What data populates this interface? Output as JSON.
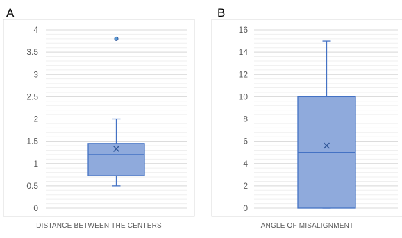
{
  "colors": {
    "box_fill": "#8faadc",
    "box_stroke": "#4472c4",
    "mean_marker": "#2f5597",
    "outlier_fill": "#5b9bd5",
    "outlier_stroke": "#2f5597"
  },
  "chart_data": [
    {
      "type": "box",
      "panel_label": "A",
      "xlabel": "DISTANCE BETWEEN THE CENTERS",
      "ylim": [
        0,
        4
      ],
      "yticks": [
        0,
        0.5,
        1,
        1.5,
        2,
        2.5,
        3,
        3.5,
        4
      ],
      "ytick_labels": [
        "0",
        "0.5",
        "1",
        "1.5",
        "2",
        "2.5",
        "3",
        "3.5",
        "4"
      ],
      "minor_step": 0.1,
      "box": {
        "min": 0.5,
        "q1": 0.73,
        "median": 1.2,
        "q3": 1.45,
        "max": 2.0,
        "mean": 1.33
      },
      "outliers": [
        3.8
      ],
      "grid": true,
      "legend": "none"
    },
    {
      "type": "box",
      "panel_label": "B",
      "xlabel": "ANGLE OF MISALIGNMENT",
      "ylim": [
        0,
        16
      ],
      "yticks": [
        0,
        2,
        4,
        6,
        8,
        10,
        12,
        14,
        16
      ],
      "ytick_labels": [
        "0",
        "2",
        "4",
        "6",
        "8",
        "10",
        "12",
        "14",
        "16"
      ],
      "minor_step": 0.4,
      "box": {
        "min": 0,
        "q1": 0,
        "median": 5,
        "q3": 10,
        "max": 15,
        "mean": 5.6
      },
      "outliers": [],
      "grid": true,
      "legend": "none"
    }
  ]
}
